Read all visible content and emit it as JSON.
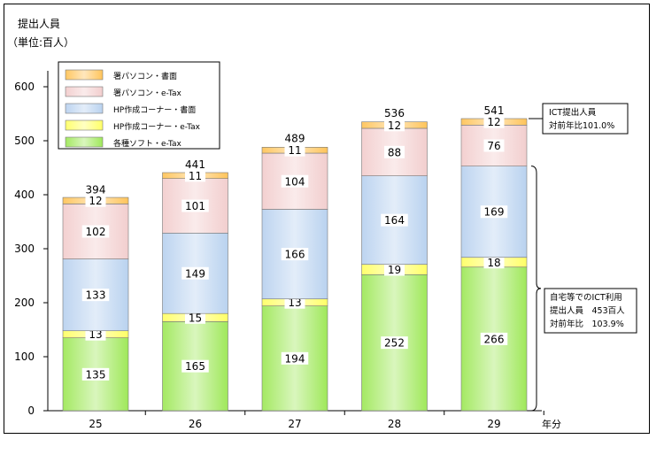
{
  "chart_data": {
    "type": "bar",
    "stacked": true,
    "title": "",
    "ylabel": "提出人員",
    "yunit": "（単位:百人）",
    "xunit": "年分",
    "categories": [
      "25",
      "26",
      "27",
      "28",
      "29"
    ],
    "ylim": [
      0,
      600
    ],
    "yticks": [
      0,
      100,
      200,
      300,
      400,
      500,
      600
    ],
    "grid": false,
    "legend_position": "top-left",
    "series": [
      {
        "name": "各種ソフト・e-Tax",
        "values": [
          135,
          165,
          194,
          252,
          266
        ],
        "color": "#9fe85a"
      },
      {
        "name": "HP作成コーナー・e-Tax",
        "values": [
          13,
          15,
          13,
          19,
          18
        ],
        "color": "#ffff66"
      },
      {
        "name": "HP作成コーナー・書面",
        "values": [
          133,
          149,
          166,
          164,
          169
        ],
        "color": "#b9d2ef"
      },
      {
        "name": "署パソコン・e-Tax",
        "values": [
          102,
          101,
          104,
          88,
          76
        ],
        "color": "#f2cece"
      },
      {
        "name": "署パソコン・書面",
        "values": [
          12,
          11,
          11,
          12,
          12
        ],
        "color": "#ffc45a"
      }
    ],
    "totals": [
      394,
      441,
      489,
      536,
      541
    ],
    "annotations": {
      "callout_top": [
        "ICT提出人員",
        "対前年比101.0%"
      ],
      "callout_bottom": [
        "自宅等でのICT利用",
        "提出人員　453百人",
        "対前年比　103.9%"
      ]
    }
  }
}
